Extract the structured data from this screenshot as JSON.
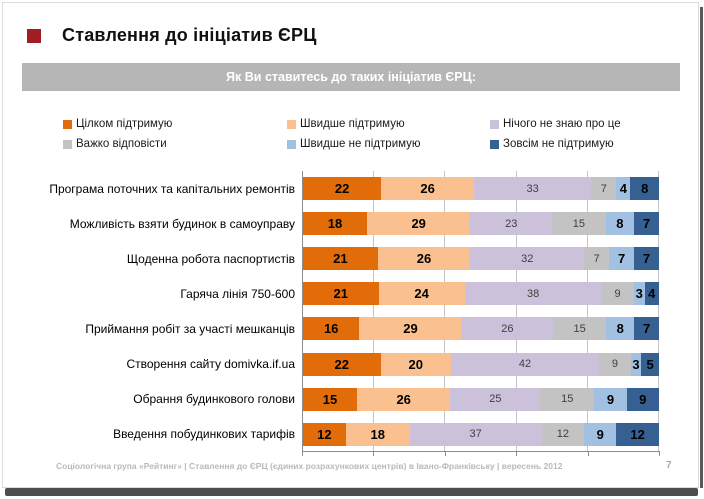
{
  "slide": {
    "title": "Ставлення до ініціатив ЄРЦ",
    "subtitle_banner": "Як Ви ставитесь до таких ініціатив ЄРЦ:",
    "footer": "Соціологічна група «Рейтинг»  |  Ставлення до ЄРЦ (єдиних розрахункових центрів) в Івано-Франківську | вересень 2012",
    "page_number": "7",
    "colors": {
      "accent_square": "#A01D23",
      "banner_bg": "#B6B6B6",
      "banner_text": "#FFFFFF",
      "footer_text": "#B9B9B9"
    }
  },
  "chart_data": {
    "type": "bar",
    "subtype": "horizontal-stacked-100",
    "title": "Як Ви ставитесь до таких ініціатив ЄРЦ:",
    "unit": "%",
    "xlim": [
      0,
      100
    ],
    "grid": true,
    "gridline_step": 20,
    "legend_position": "top",
    "legend_rows": [
      [
        0,
        1,
        2
      ],
      [
        3,
        4,
        5
      ]
    ],
    "categories": [
      "Програма поточних та капітальних ремонтів",
      "Можливість взяти будинок в самоуправу",
      "Щоденна робота паспортистів",
      "Гаряча лінія 750-600",
      "Приймання робіт за участі мешканців",
      "Створення сайту domivka.if.ua",
      "Обрання будинкового голови",
      "Введення побудинкових тарифів"
    ],
    "series": [
      {
        "name": "Цілком підтримую",
        "color": "#E26B0A",
        "label_style": "bold",
        "values": [
          22,
          18,
          21,
          21,
          16,
          22,
          15,
          12
        ]
      },
      {
        "name": "Швидше підтримую",
        "color": "#FAC090",
        "label_style": "bold",
        "values": [
          26,
          29,
          26,
          24,
          29,
          20,
          26,
          18
        ]
      },
      {
        "name": "Нічого не знаю про це",
        "color": "#CCC1DA",
        "label_style": "small",
        "values": [
          33,
          23,
          32,
          38,
          26,
          42,
          25,
          37
        ]
      },
      {
        "name": "Важко відповісти",
        "color": "#C3C3C3",
        "label_style": "small",
        "values": [
          7,
          15,
          7,
          9,
          15,
          9,
          15,
          12
        ]
      },
      {
        "name": "Швидше не підтримую",
        "color": "#A2C1E2",
        "label_style": "bold",
        "values": [
          4,
          8,
          7,
          3,
          8,
          3,
          9,
          9
        ]
      },
      {
        "name": "Зовсім не підтримую",
        "color": "#376092",
        "label_style": "bold",
        "values": [
          8,
          7,
          7,
          4,
          7,
          5,
          9,
          12
        ]
      }
    ]
  }
}
